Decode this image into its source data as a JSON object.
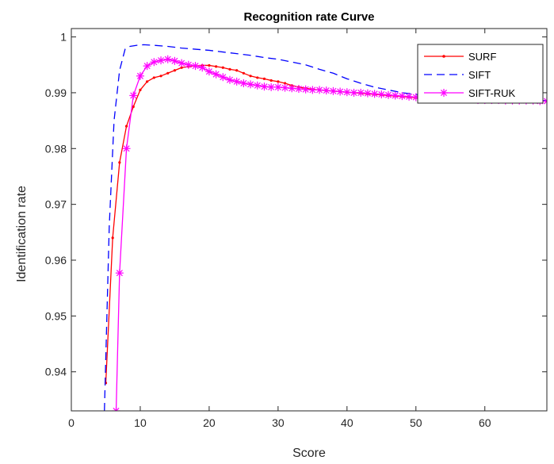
{
  "chart_data": {
    "type": "line",
    "title": "Recognition rate Curve",
    "xlabel": "Score",
    "ylabel": "Identification rate",
    "xlim": [
      0,
      69
    ],
    "ylim": [
      0.933,
      1.0015
    ],
    "xticks": [
      0,
      10,
      20,
      30,
      40,
      50,
      60
    ],
    "xtick_labels": [
      "0",
      "10",
      "20",
      "30",
      "40",
      "50",
      "60"
    ],
    "yticks": [
      0.94,
      0.95,
      0.96,
      0.97,
      0.98,
      0.99,
      1
    ],
    "ytick_labels": [
      "0.94",
      "0.95",
      "0.96",
      "0.97",
      "0.98",
      "0.99",
      "1"
    ],
    "grid": false,
    "legend_position": "top-right",
    "series": [
      {
        "name": "SURF",
        "color": "#ff0000",
        "line_style": "solid",
        "marker": "dot",
        "x": [
          5,
          6,
          7,
          8,
          9,
          10,
          11,
          12,
          13,
          14,
          15,
          16,
          17,
          18,
          19,
          20,
          21,
          22,
          23,
          24,
          25,
          26,
          27,
          28,
          29,
          30,
          31,
          32,
          33,
          34,
          35,
          36,
          37,
          38,
          39,
          40,
          41,
          42,
          43,
          44,
          45,
          46,
          47,
          48,
          49,
          50,
          51,
          52,
          53,
          54,
          55,
          56,
          57,
          58,
          59,
          60,
          61,
          62,
          63,
          64,
          65,
          66,
          67,
          68,
          69
        ],
        "y": [
          0.938,
          0.964,
          0.9775,
          0.984,
          0.9875,
          0.9905,
          0.992,
          0.9927,
          0.993,
          0.9935,
          0.994,
          0.9945,
          0.9947,
          0.9948,
          0.9949,
          0.9949,
          0.9947,
          0.9945,
          0.9942,
          0.994,
          0.9935,
          0.993,
          0.9927,
          0.9925,
          0.9922,
          0.992,
          0.9917,
          0.9913,
          0.991,
          0.9908,
          0.9906,
          0.9905,
          0.9904,
          0.9903,
          0.9902,
          0.9901,
          0.99,
          0.9899,
          0.9898,
          0.9897,
          0.9896,
          0.9895,
          0.9894,
          0.9893,
          0.9892,
          0.9891,
          0.989,
          0.989,
          0.9889,
          0.9889,
          0.9888,
          0.9888,
          0.9888,
          0.9887,
          0.9887,
          0.9887,
          0.9887,
          0.9886,
          0.9886,
          0.9886,
          0.9886,
          0.9886,
          0.9886,
          0.9885,
          0.9885
        ]
      },
      {
        "name": "SIFT",
        "color": "#0000ff",
        "line_style": "dashed",
        "marker": "none",
        "x": [
          4.8,
          5.5,
          6.2,
          7,
          7.8,
          8.5,
          9.5,
          10.5,
          12,
          14,
          16,
          18,
          20,
          22,
          24,
          26,
          28,
          30,
          32,
          34,
          36,
          38,
          40,
          42,
          44,
          46,
          48,
          50,
          52,
          54,
          56,
          58,
          60,
          62,
          64,
          66,
          68,
          69
        ],
        "y": [
          0.933,
          0.966,
          0.985,
          0.994,
          0.9978,
          0.9983,
          0.9985,
          0.9986,
          0.9985,
          0.9983,
          0.998,
          0.9978,
          0.9976,
          0.9973,
          0.997,
          0.9967,
          0.9963,
          0.996,
          0.9955,
          0.995,
          0.9942,
          0.9935,
          0.9925,
          0.9917,
          0.991,
          0.9905,
          0.99,
          0.9897,
          0.9895,
          0.9893,
          0.9891,
          0.989,
          0.9889,
          0.9888,
          0.9887,
          0.9886,
          0.9886,
          0.9886
        ]
      },
      {
        "name": "SIFT-RUK",
        "color": "#ff00ff",
        "line_style": "solid",
        "marker": "asterisk",
        "x": [
          6.5,
          7,
          8,
          9,
          10,
          11,
          12,
          13,
          14,
          15,
          16,
          17,
          18,
          19,
          20,
          21,
          22,
          23,
          24,
          25,
          26,
          27,
          28,
          29,
          30,
          31,
          32,
          33,
          34,
          35,
          36,
          37,
          38,
          39,
          40,
          41,
          42,
          43,
          44,
          45,
          46,
          47,
          48,
          49,
          50,
          51,
          52,
          53,
          54,
          55,
          56,
          57,
          58,
          59,
          60,
          61,
          62,
          63,
          64,
          65,
          66,
          67,
          68,
          69
        ],
        "y": [
          0.933,
          0.9577,
          0.98,
          0.9895,
          0.993,
          0.9948,
          0.9955,
          0.9958,
          0.996,
          0.9957,
          0.9953,
          0.995,
          0.9948,
          0.9945,
          0.9938,
          0.9933,
          0.9928,
          0.9923,
          0.992,
          0.9917,
          0.9915,
          0.9913,
          0.9911,
          0.991,
          0.991,
          0.9909,
          0.9908,
          0.9907,
          0.9906,
          0.9905,
          0.9905,
          0.9904,
          0.9903,
          0.9902,
          0.9901,
          0.99,
          0.99,
          0.9899,
          0.9898,
          0.9897,
          0.9896,
          0.9895,
          0.9894,
          0.9893,
          0.9892,
          0.9891,
          0.989,
          0.989,
          0.9889,
          0.9889,
          0.9888,
          0.9888,
          0.9888,
          0.9887,
          0.9887,
          0.9887,
          0.9887,
          0.9886,
          0.9886,
          0.9886,
          0.9886,
          0.9886,
          0.9885,
          0.9885
        ]
      }
    ]
  }
}
